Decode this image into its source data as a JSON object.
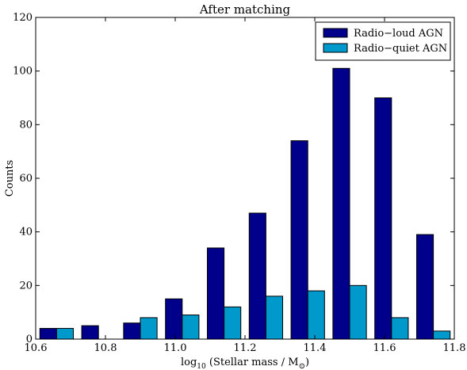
{
  "chart_data": {
    "type": "bar",
    "title": "After matching",
    "xlabel_main": "log",
    "xlabel_sub": "10",
    "xlabel_rest": " (Stellar mass / M",
    "xlabel_symbol": "⊙",
    "xlabel_close": ")",
    "ylabel": "Counts",
    "xlim": [
      10.6,
      11.8
    ],
    "ylim": [
      0,
      120
    ],
    "xticks": [
      10.6,
      10.8,
      11.0,
      11.2,
      11.4,
      11.6,
      11.8
    ],
    "xtick_labels": [
      "10.6",
      "10.8",
      "11.0",
      "11.2",
      "11.4",
      "11.6",
      "11.8"
    ],
    "yticks": [
      0,
      20,
      40,
      60,
      80,
      100,
      120
    ],
    "ytick_labels": [
      "0",
      "20",
      "40",
      "60",
      "80",
      "100",
      "120"
    ],
    "bin_edges": [
      10.6,
      10.72,
      10.84,
      10.96,
      11.08,
      11.2,
      11.32,
      11.44,
      11.56,
      11.68,
      11.8
    ],
    "legend_position": "top-right",
    "series": [
      {
        "name": "Radio−loud AGN",
        "color": "#00008b",
        "values": [
          4,
          5,
          6,
          15,
          34,
          47,
          74,
          101,
          90,
          39
        ]
      },
      {
        "name": "Radio−quiet AGN",
        "color": "#0099cc",
        "values": [
          4,
          0,
          8,
          9,
          12,
          16,
          18,
          20,
          8,
          3
        ]
      }
    ]
  }
}
